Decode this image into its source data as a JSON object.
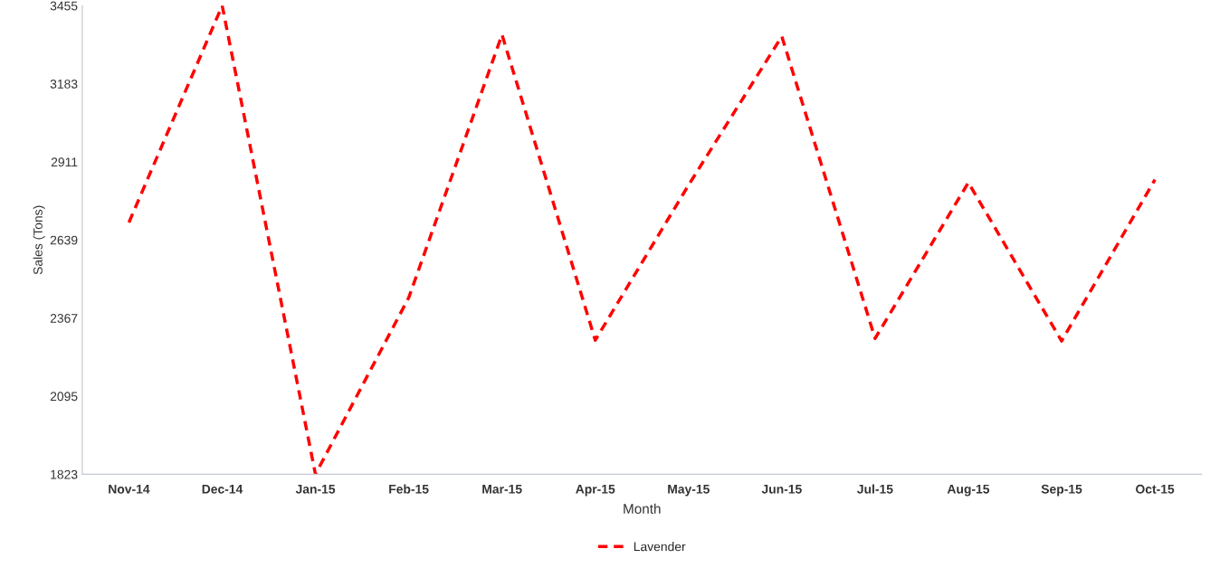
{
  "chart_data": {
    "type": "line",
    "xlabel": "Month",
    "ylabel": "Sales (Tons)",
    "categories": [
      "Nov-14",
      "Dec-14",
      "Jan-15",
      "Feb-15",
      "Mar-15",
      "Apr-15",
      "May-15",
      "Jun-15",
      "Jul-15",
      "Aug-15",
      "Sep-15",
      "Oct-15"
    ],
    "series": [
      {
        "name": "Lavender",
        "color": "#ff0000",
        "values": [
          2700,
          3455,
          1823,
          2438,
          3354,
          2290,
          2830,
          3348,
          2296,
          2839,
          2287,
          2849
        ]
      }
    ],
    "ylim": [
      1823,
      3455
    ],
    "yticks": [
      1823,
      2095,
      2367,
      2639,
      2911,
      3183,
      3455
    ],
    "grid": false,
    "legend": "bottom",
    "line_style": "dashed",
    "marker": "none"
  }
}
